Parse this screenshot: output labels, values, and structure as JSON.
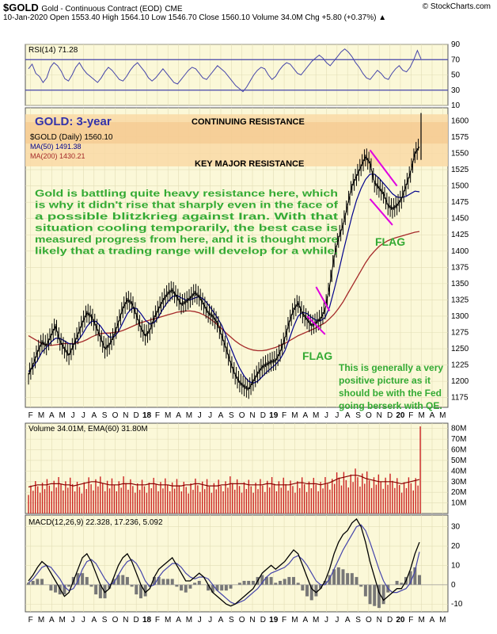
{
  "header": {
    "symbol": "$GOLD",
    "description": "Gold - Continuous Contract (EOD)",
    "exchange": "CME",
    "watermark": "© StockCharts.com",
    "quote": "10-Jan-2020   Open 1553.40  High 1564.10  Low 1546.70  Close 1560.10  Volume 34.0M  Chg +5.80 (+0.37%) ▲"
  },
  "colors": {
    "panel_bg": "#fbf8d8",
    "resistance_band": "#f9d9a6",
    "price": "#000000",
    "ma50": "#00008b",
    "ma200": "#a52a2a",
    "rsi": "#4444aa",
    "volume_bar": "#cc2222",
    "flag": "#e000e0",
    "annotation_blue": "#3333aa",
    "annotation_green": "#33aa33"
  },
  "chart_data": [
    {
      "type": "line",
      "name": "rsi",
      "legend": "RSI(14) 71.28",
      "ylim": [
        10,
        90
      ],
      "yticks": [
        "90",
        "70",
        "50",
        "30",
        "10"
      ],
      "levels": [
        70,
        30
      ],
      "values": [
        58,
        64,
        52,
        48,
        40,
        46,
        60,
        66,
        62,
        55,
        45,
        42,
        50,
        60,
        66,
        58,
        52,
        48,
        44,
        40,
        46,
        54,
        60,
        56,
        50,
        44,
        42,
        48,
        56,
        62,
        66,
        60,
        54,
        46,
        42,
        46,
        52,
        58,
        52,
        46,
        40,
        38,
        44,
        50,
        56,
        60,
        58,
        52,
        46,
        44,
        50,
        56,
        62,
        58,
        54,
        48,
        42,
        36,
        32,
        28,
        34,
        42,
        50,
        56,
        60,
        58,
        50,
        44,
        48,
        56,
        62,
        66,
        64,
        58,
        52,
        50,
        56,
        62,
        68,
        72,
        76,
        72,
        66,
        62,
        68,
        74,
        80,
        84,
        80,
        74,
        66,
        60,
        52,
        46,
        44,
        50,
        56,
        52,
        46,
        44,
        52,
        58,
        62,
        56,
        54,
        60,
        70,
        82,
        71
      ]
    },
    {
      "type": "line",
      "name": "price",
      "title": "GOLD: 3-year",
      "legend": "$GOLD (Daily) 1560.10",
      "ylim": [
        1160,
        1620
      ],
      "yticks": [
        "1600",
        "1575",
        "1550",
        "1525",
        "1500",
        "1475",
        "1450",
        "1425",
        "1400",
        "1375",
        "1350",
        "1325",
        "1300",
        "1275",
        "1250",
        "1225",
        "1200",
        "1175"
      ],
      "x_labels": [
        "F",
        "M",
        "A",
        "M",
        "J",
        "J",
        "A",
        "S",
        "O",
        "N",
        "D",
        "18",
        "F",
        "M",
        "A",
        "M",
        "J",
        "J",
        "A",
        "S",
        "O",
        "N",
        "D",
        "19",
        "F",
        "M",
        "A",
        "M",
        "J",
        "J",
        "A",
        "S",
        "O",
        "N",
        "D",
        "20",
        "F",
        "M",
        "A",
        "M"
      ],
      "x_first_month": "2017-02",
      "last_date": "2020-01-10",
      "series": [
        {
          "role": "price",
          "values": [
            1210,
            1225,
            1245,
            1260,
            1255,
            1270,
            1285,
            1262,
            1250,
            1240,
            1255,
            1272,
            1290,
            1305,
            1300,
            1285,
            1268,
            1250,
            1256,
            1270,
            1290,
            1312,
            1325,
            1320,
            1302,
            1282,
            1270,
            1278,
            1298,
            1312,
            1325,
            1335,
            1340,
            1330,
            1318,
            1322,
            1328,
            1336,
            1330,
            1318,
            1305,
            1300,
            1290,
            1270,
            1250,
            1228,
            1210,
            1198,
            1192,
            1188,
            1200,
            1212,
            1222,
            1226,
            1230,
            1232,
            1245,
            1265,
            1290,
            1310,
            1320,
            1304,
            1295,
            1286,
            1290,
            1296,
            1310,
            1345,
            1390,
            1420,
            1440,
            1470,
            1500,
            1515,
            1530,
            1545,
            1535,
            1505,
            1497,
            1488,
            1470,
            1465,
            1470,
            1480,
            1500,
            1520,
            1550,
            1560
          ]
        },
        {
          "role": "ma",
          "name": "MA(50) 1491.38",
          "values": [
            1215,
            1222,
            1232,
            1245,
            1252,
            1260,
            1266,
            1266,
            1262,
            1258,
            1257,
            1262,
            1272,
            1284,
            1292,
            1292,
            1285,
            1275,
            1268,
            1268,
            1276,
            1290,
            1304,
            1312,
            1312,
            1304,
            1294,
            1288,
            1290,
            1300,
            1312,
            1322,
            1330,
            1332,
            1328,
            1325,
            1325,
            1328,
            1330,
            1326,
            1318,
            1308,
            1298,
            1286,
            1270,
            1252,
            1235,
            1220,
            1208,
            1200,
            1197,
            1200,
            1207,
            1214,
            1220,
            1226,
            1234,
            1246,
            1264,
            1284,
            1300,
            1306,
            1304,
            1298,
            1294,
            1293,
            1298,
            1314,
            1340,
            1368,
            1398,
            1426,
            1454,
            1478,
            1496,
            1510,
            1518,
            1518,
            1512,
            1504,
            1496,
            1488,
            1483,
            1482,
            1484,
            1488,
            1492,
            1491
          ]
        },
        {
          "role": "ma",
          "name": "MA(200) 1430.21",
          "values": [
            1270,
            1266,
            1262,
            1258,
            1256,
            1255,
            1256,
            1257,
            1258,
            1258,
            1258,
            1259,
            1261,
            1264,
            1268,
            1271,
            1273,
            1274,
            1274,
            1275,
            1276,
            1278,
            1281,
            1284,
            1287,
            1290,
            1292,
            1294,
            1296,
            1298,
            1300,
            1302,
            1304,
            1306,
            1307,
            1308,
            1308,
            1307,
            1305,
            1302,
            1298,
            1293,
            1287,
            1281,
            1274,
            1268,
            1262,
            1257,
            1253,
            1250,
            1248,
            1247,
            1247,
            1248,
            1250,
            1252,
            1255,
            1258,
            1262,
            1266,
            1270,
            1273,
            1276,
            1279,
            1282,
            1286,
            1290,
            1296,
            1303,
            1312,
            1322,
            1334,
            1346,
            1358,
            1370,
            1382,
            1392,
            1400,
            1407,
            1412,
            1416,
            1419,
            1421,
            1423,
            1425,
            1427,
            1429,
            1430
          ]
        }
      ]
    },
    {
      "type": "bar",
      "name": "volume",
      "legend": "Volume 34.01M, EMA(60) 31.80M",
      "ylim": [
        0,
        85
      ],
      "yticks": [
        "80M",
        "70M",
        "60M",
        "50M",
        "40M",
        "30M",
        "20M",
        "10M"
      ],
      "ema": [
        25,
        26,
        27,
        27,
        27,
        28,
        28,
        28,
        27,
        27,
        26,
        27,
        28,
        29,
        30,
        30,
        29,
        28,
        27,
        27,
        27,
        28,
        28,
        28,
        27,
        27,
        27,
        28,
        28,
        27,
        27,
        27,
        26,
        26,
        26,
        27,
        27,
        28,
        28,
        27,
        26,
        26,
        26,
        27,
        27,
        28,
        28,
        28,
        28,
        27,
        27,
        27,
        27,
        28,
        28,
        27,
        27,
        27,
        27,
        28,
        29,
        29,
        28,
        28,
        28,
        27,
        28,
        29,
        31,
        33,
        34,
        35,
        36,
        36,
        35,
        33,
        32,
        31,
        30,
        30,
        30,
        30,
        29,
        28,
        29,
        30,
        31,
        32
      ]
    },
    {
      "type": "line",
      "name": "macd",
      "legend": "MACD(12,26,9) 22.328, 17.236, 5.092",
      "ylim": [
        -14,
        36
      ],
      "yticks": [
        "30",
        "20",
        "10",
        "0",
        "-10"
      ],
      "series": [
        {
          "name": "MACD",
          "values": [
            2,
            5,
            9,
            12,
            10,
            6,
            2,
            -2,
            -6,
            -4,
            2,
            8,
            14,
            16,
            12,
            6,
            0,
            -4,
            -2,
            4,
            10,
            14,
            16,
            12,
            6,
            0,
            -4,
            -2,
            4,
            8,
            10,
            12,
            14,
            10,
            6,
            2,
            2,
            4,
            6,
            4,
            0,
            -4,
            -6,
            -8,
            -10,
            -11,
            -10,
            -8,
            -6,
            -4,
            -2,
            2,
            6,
            8,
            10,
            8,
            10,
            12,
            15,
            18,
            16,
            10,
            4,
            -2,
            -4,
            -2,
            2,
            8,
            16,
            22,
            26,
            28,
            32,
            34,
            30,
            22,
            12,
            4,
            -4,
            -8,
            -6,
            -4,
            -2,
            -2,
            2,
            8,
            16,
            22
          ]
        },
        {
          "name": "Signal",
          "values": [
            1,
            3,
            6,
            9,
            10,
            9,
            6,
            3,
            -1,
            -3,
            -2,
            2,
            8,
            12,
            13,
            11,
            7,
            3,
            0,
            1,
            5,
            9,
            12,
            13,
            11,
            7,
            2,
            -1,
            0,
            4,
            7,
            9,
            11,
            11,
            9,
            6,
            4,
            3,
            4,
            4,
            3,
            0,
            -3,
            -5,
            -7,
            -9,
            -10,
            -9,
            -8,
            -6,
            -4,
            -2,
            1,
            4,
            6,
            7,
            8,
            9,
            11,
            14,
            15,
            13,
            10,
            6,
            2,
            0,
            0,
            3,
            8,
            13,
            18,
            22,
            26,
            30,
            31,
            28,
            22,
            15,
            8,
            2,
            -2,
            -4,
            -4,
            -3,
            -2,
            1,
            7,
            17
          ]
        }
      ],
      "x_labels": [
        "F",
        "M",
        "A",
        "M",
        "J",
        "J",
        "A",
        "S",
        "O",
        "N",
        "D",
        "18",
        "F",
        "M",
        "A",
        "M",
        "J",
        "J",
        "A",
        "S",
        "O",
        "N",
        "D",
        "19",
        "F",
        "M",
        "A",
        "M",
        "J",
        "J",
        "A",
        "S",
        "O",
        "N",
        "D",
        "20",
        "F",
        "M",
        "A",
        "M"
      ]
    }
  ],
  "annotations": {
    "continuing_resistance": "CONTINUING RESISTANCE",
    "key_resistance": "KEY MAJOR RESISTANCE",
    "main_text": [
      "Gold is battling quite heavy resistance here, which",
      "is why it didn't rise that sharply even in the face of",
      "a possible blitzkrieg against Iran. With that",
      "situation cooling temporarily, the best case is",
      "measured progress from here, and it is thought more",
      "likely that a trading range will develop for a while."
    ],
    "flag_labels": [
      "FLAG",
      "FLAG"
    ],
    "qe_text": [
      "This is generally a very",
      "positive picture as it",
      "should be with the Fed",
      "going berserk with QE."
    ]
  }
}
